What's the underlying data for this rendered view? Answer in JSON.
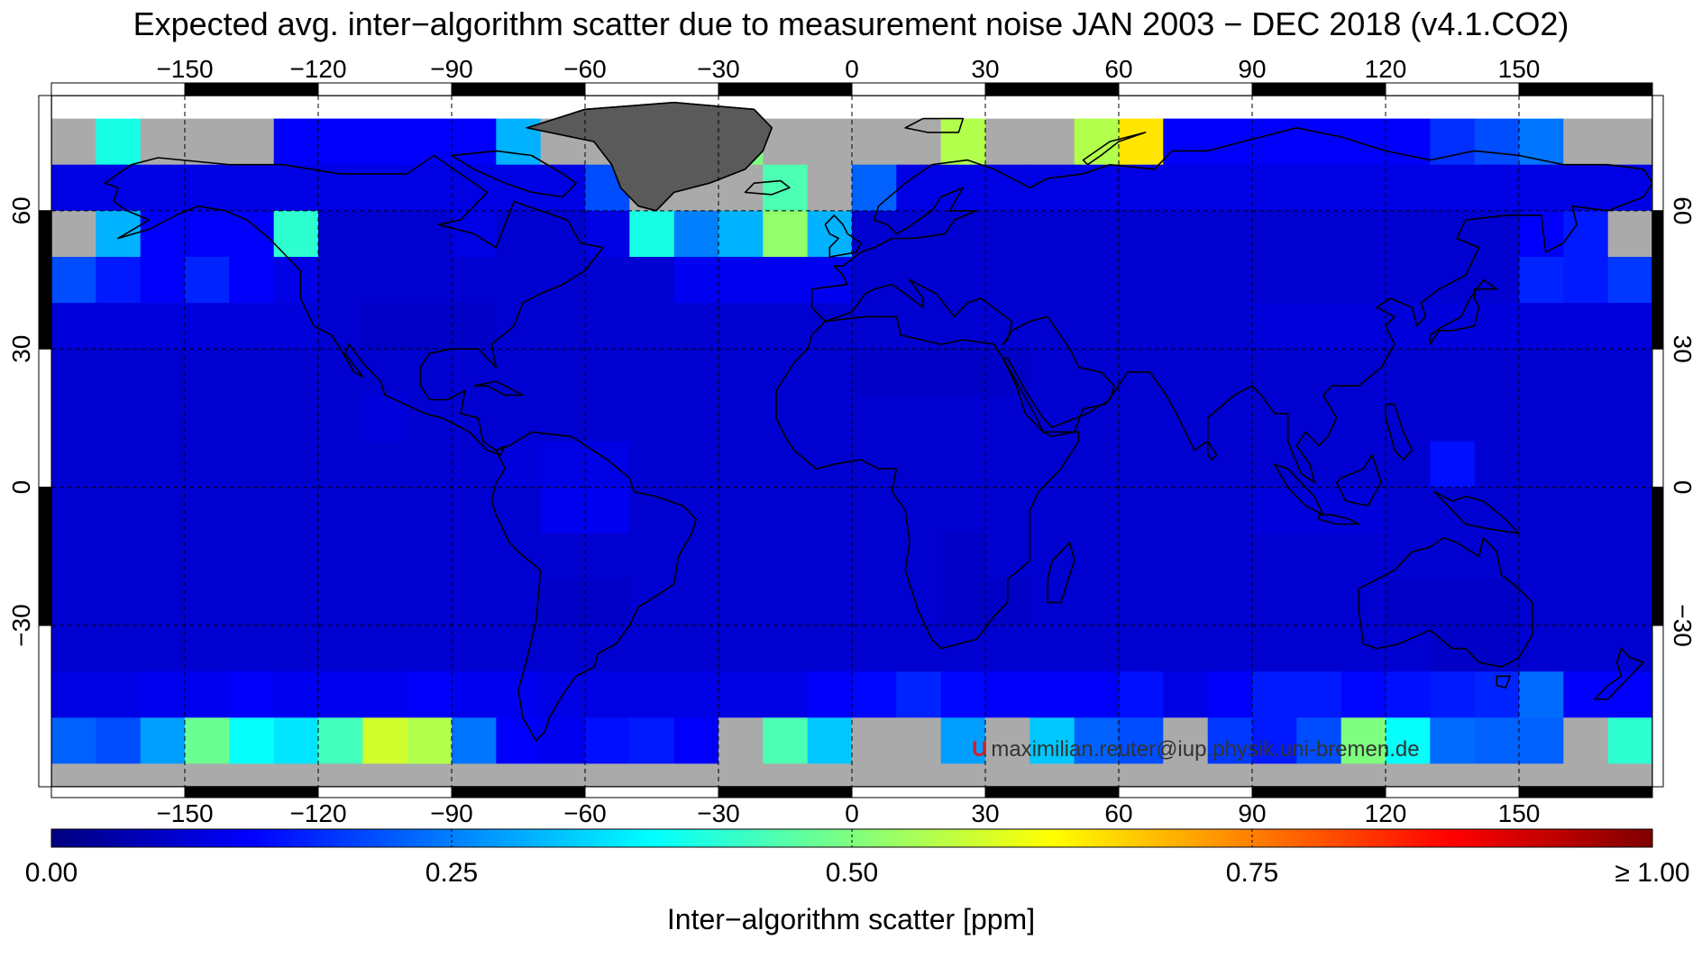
{
  "title": "Expected avg. inter−algorithm scatter due to measurement noise JAN 2003 − DEC 2018 (v4.1.CO2)",
  "map": {
    "lon_ticks": [
      "−150",
      "−120",
      "−90",
      "−60",
      "−30",
      "0",
      "30",
      "60",
      "90",
      "120",
      "150"
    ],
    "lat_ticks": [
      "60",
      "30",
      "0",
      "−30"
    ],
    "lon_range": [
      -180,
      180
    ],
    "lat_range": [
      -80,
      80
    ],
    "cell_size_deg": 10,
    "no_data_color": "#aaaaaa",
    "land_nodata_color": "#5a5a5a",
    "grid": "dashed"
  },
  "colorbar": {
    "labels": [
      "0.00",
      "0.25",
      "0.50",
      "0.75",
      "≥ 1.00"
    ],
    "title": "Inter−algorithm scatter [ppm]",
    "range": [
      0,
      1
    ],
    "colors": [
      "#00007f",
      "#0000ff",
      "#007fff",
      "#00ffff",
      "#7fff7f",
      "#ffff00",
      "#ff7f00",
      "#ff0000",
      "#7f0000"
    ]
  },
  "watermark": {
    "logo": "U",
    "text": "maximilian.reuter@iup.physik.uni-bremen.de"
  },
  "chart_data": {
    "type": "heatmap",
    "title": "Expected avg. inter−algorithm scatter due to measurement noise JAN 2003 − DEC 2018 (v4.1.CO2)",
    "colorbar_label": "Inter−algorithm scatter [ppm]",
    "x_centers_deg_lon": [
      -175,
      -165,
      -155,
      -145,
      -135,
      -125,
      -115,
      -105,
      -95,
      -85,
      -75,
      -65,
      -55,
      -45,
      -35,
      -25,
      -15,
      -5,
      5,
      15,
      25,
      35,
      45,
      55,
      65,
      75,
      85,
      95,
      105,
      115,
      125,
      135,
      145,
      155,
      165,
      175
    ],
    "y_centers_deg_lat": [
      75,
      65,
      55,
      45,
      35,
      25,
      15,
      5,
      -5,
      -15,
      -25,
      -35,
      -45,
      -55,
      -65,
      -75
    ],
    "null_means": "no data",
    "values": [
      [
        null,
        0.4,
        null,
        null,
        null,
        0.12,
        0.12,
        0.12,
        0.12,
        0.12,
        0.3,
        null,
        null,
        null,
        null,
        0.5,
        null,
        null,
        null,
        null,
        0.55,
        null,
        null,
        0.55,
        0.65,
        0.12,
        0.12,
        0.12,
        0.12,
        0.12,
        0.12,
        0.17,
        0.2,
        0.24,
        null,
        null
      ],
      [
        0.1,
        0.1,
        0.1,
        0.1,
        0.1,
        0.1,
        0.1,
        0.1,
        0.1,
        0.1,
        0.1,
        0.1,
        0.2,
        null,
        null,
        null,
        0.45,
        null,
        0.22,
        0.1,
        0.1,
        0.1,
        0.1,
        0.1,
        0.1,
        0.1,
        0.1,
        0.1,
        0.1,
        0.1,
        0.1,
        0.1,
        0.1,
        0.1,
        0.1,
        0.1
      ],
      [
        null,
        0.3,
        0.12,
        0.12,
        0.12,
        0.42,
        0.08,
        0.08,
        0.08,
        0.1,
        0.08,
        0.08,
        0.1,
        0.4,
        0.25,
        0.3,
        0.52,
        0.3,
        0.08,
        0.08,
        0.08,
        0.08,
        0.08,
        0.08,
        0.08,
        0.08,
        0.08,
        0.08,
        0.08,
        0.08,
        0.08,
        0.08,
        0.08,
        0.12,
        0.15,
        null
      ],
      [
        0.2,
        0.15,
        0.12,
        0.16,
        0.12,
        0.1,
        0.08,
        0.08,
        0.08,
        0.08,
        0.08,
        0.08,
        0.08,
        0.08,
        0.11,
        0.11,
        0.11,
        0.11,
        0.08,
        0.08,
        0.08,
        0.08,
        0.08,
        0.08,
        0.08,
        0.08,
        0.08,
        0.08,
        0.08,
        0.08,
        0.08,
        0.08,
        0.08,
        0.16,
        0.15,
        0.18
      ],
      [
        0.09,
        0.09,
        0.09,
        0.09,
        0.09,
        0.09,
        0.08,
        0.07,
        0.07,
        0.07,
        0.08,
        0.08,
        0.08,
        0.08,
        0.08,
        0.08,
        0.08,
        0.08,
        0.08,
        0.08,
        0.08,
        0.08,
        0.08,
        0.08,
        0.08,
        0.08,
        0.08,
        0.09,
        0.09,
        0.09,
        0.09,
        0.09,
        0.09,
        0.09,
        0.09,
        0.09
      ],
      [
        0.08,
        0.08,
        0.08,
        0.08,
        0.08,
        0.08,
        0.08,
        0.08,
        0.08,
        0.08,
        0.08,
        0.08,
        0.08,
        0.08,
        0.08,
        0.08,
        0.08,
        0.08,
        0.07,
        0.07,
        0.07,
        0.07,
        0.08,
        0.08,
        0.08,
        0.08,
        0.08,
        0.08,
        0.08,
        0.08,
        0.08,
        0.08,
        0.08,
        0.08,
        0.08,
        0.08
      ],
      [
        0.08,
        0.08,
        0.08,
        0.08,
        0.08,
        0.08,
        0.08,
        0.09,
        0.08,
        0.08,
        0.08,
        0.08,
        0.08,
        0.08,
        0.08,
        0.08,
        0.08,
        0.08,
        0.08,
        0.08,
        0.08,
        0.08,
        0.08,
        0.08,
        0.08,
        0.08,
        0.08,
        0.08,
        0.08,
        0.08,
        0.08,
        0.08,
        0.08,
        0.08,
        0.08,
        0.08
      ],
      [
        0.08,
        0.08,
        0.08,
        0.08,
        0.08,
        0.08,
        0.08,
        0.08,
        0.08,
        0.08,
        0.09,
        0.1,
        0.1,
        0.08,
        0.08,
        0.08,
        0.08,
        0.08,
        0.08,
        0.08,
        0.08,
        0.08,
        0.08,
        0.08,
        0.08,
        0.08,
        0.08,
        0.08,
        0.08,
        0.08,
        0.08,
        0.14,
        0.08,
        0.08,
        0.08,
        0.08
      ],
      [
        0.08,
        0.08,
        0.08,
        0.08,
        0.08,
        0.08,
        0.08,
        0.08,
        0.08,
        0.08,
        0.08,
        0.11,
        0.11,
        0.08,
        0.08,
        0.08,
        0.08,
        0.08,
        0.08,
        0.08,
        0.08,
        0.08,
        0.08,
        0.08,
        0.08,
        0.08,
        0.08,
        0.09,
        0.09,
        0.09,
        0.08,
        0.08,
        0.08,
        0.08,
        0.08,
        0.08
      ],
      [
        0.08,
        0.08,
        0.08,
        0.08,
        0.08,
        0.08,
        0.08,
        0.08,
        0.08,
        0.08,
        0.08,
        0.08,
        0.08,
        0.08,
        0.08,
        0.08,
        0.08,
        0.08,
        0.08,
        0.08,
        0.07,
        0.08,
        0.08,
        0.08,
        0.08,
        0.08,
        0.08,
        0.08,
        0.08,
        0.08,
        0.08,
        0.08,
        0.08,
        0.08,
        0.08,
        0.08
      ],
      [
        0.08,
        0.08,
        0.08,
        0.08,
        0.08,
        0.08,
        0.08,
        0.08,
        0.08,
        0.08,
        0.08,
        0.07,
        0.07,
        0.08,
        0.08,
        0.08,
        0.08,
        0.08,
        0.08,
        0.08,
        0.07,
        0.07,
        0.08,
        0.08,
        0.08,
        0.08,
        0.08,
        0.08,
        0.08,
        0.08,
        0.07,
        0.07,
        0.07,
        0.08,
        0.08,
        0.08
      ],
      [
        0.08,
        0.08,
        0.08,
        0.08,
        0.08,
        0.08,
        0.08,
        0.08,
        0.08,
        0.08,
        0.08,
        0.08,
        0.08,
        0.08,
        0.08,
        0.08,
        0.08,
        0.08,
        0.08,
        0.08,
        0.08,
        0.08,
        0.08,
        0.08,
        0.08,
        0.08,
        0.08,
        0.08,
        0.08,
        0.08,
        0.08,
        0.07,
        0.07,
        0.08,
        0.08,
        0.08
      ],
      [
        0.1,
        0.1,
        0.11,
        0.11,
        0.12,
        0.11,
        0.11,
        0.11,
        0.12,
        0.11,
        0.11,
        0.1,
        0.1,
        0.1,
        0.1,
        0.1,
        0.1,
        0.12,
        0.13,
        0.16,
        0.13,
        0.12,
        0.12,
        0.12,
        0.14,
        0.1,
        0.12,
        0.15,
        0.15,
        0.13,
        0.14,
        0.15,
        0.16,
        0.23,
        0.12,
        0.12
      ],
      [
        0.22,
        0.2,
        0.28,
        0.48,
        0.38,
        0.35,
        0.44,
        0.58,
        0.55,
        0.24,
        0.12,
        0.11,
        0.14,
        0.15,
        0.12,
        null,
        0.45,
        0.32,
        null,
        null,
        0.28,
        null,
        0.32,
        0.22,
        0.2,
        null,
        0.18,
        0.15,
        0.2,
        0.5,
        0.38,
        0.23,
        0.22,
        0.22,
        null,
        0.42
      ],
      [
        null,
        null,
        null,
        null,
        null,
        null,
        null,
        null,
        null,
        null,
        null,
        null,
        null,
        null,
        null,
        null,
        null,
        null,
        null,
        null,
        null,
        null,
        null,
        null,
        null,
        null,
        null,
        null,
        null,
        null,
        null,
        null,
        null,
        null,
        null,
        null
      ],
      [
        null,
        null,
        null,
        null,
        null,
        null,
        null,
        null,
        null,
        null,
        null,
        null,
        null,
        null,
        null,
        null,
        null,
        null,
        null,
        null,
        null,
        null,
        null,
        null,
        null,
        null,
        null,
        null,
        null,
        null,
        null,
        null,
        null,
        null,
        null,
        null
      ]
    ],
    "xlabel": "",
    "ylabel": "",
    "x_ticks": [
      -150,
      -120,
      -90,
      -60,
      -30,
      0,
      30,
      60,
      90,
      120,
      150
    ],
    "y_ticks": [
      60,
      30,
      0,
      -30
    ],
    "xlim": [
      -180,
      180
    ],
    "ylim": [
      -65,
      85
    ]
  }
}
